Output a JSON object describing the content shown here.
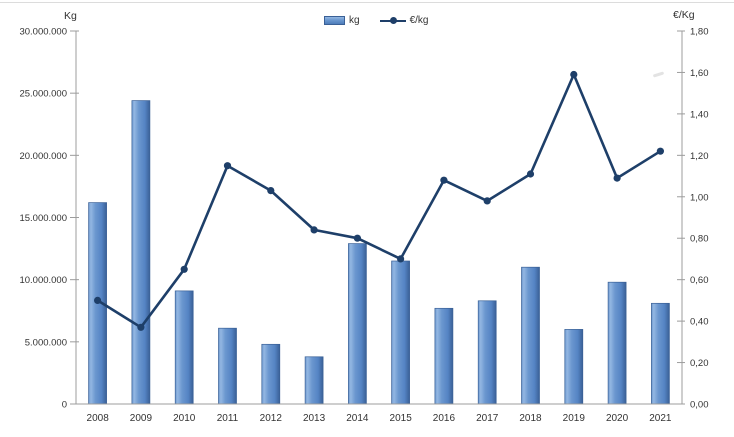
{
  "chart_data": {
    "type": "combo",
    "subtype": "bar+line dual axis",
    "title": "",
    "categories": [
      "2008",
      "2009",
      "2010",
      "2011",
      "2012",
      "2013",
      "2014",
      "2015",
      "2016",
      "2017",
      "2018",
      "2019",
      "2020",
      "2021"
    ],
    "series": [
      {
        "name": "kg",
        "type": "bar",
        "axis": "left",
        "values": [
          16200000,
          24400000,
          9100000,
          6100000,
          4800000,
          3800000,
          12900000,
          11500000,
          7700000,
          8300000,
          11000000,
          6000000,
          9800000,
          8100000
        ]
      },
      {
        "name": "€/kg",
        "type": "line",
        "axis": "right",
        "values": [
          0.5,
          0.37,
          0.65,
          1.15,
          1.03,
          0.84,
          0.8,
          0.7,
          1.08,
          0.98,
          1.11,
          1.59,
          1.09,
          1.22
        ]
      }
    ],
    "left_axis": {
      "label": "Kg",
      "min": 0,
      "max": 30000000,
      "step": 5000000,
      "tick_labels": [
        "0",
        "5.000.000",
        "10.000.000",
        "15.000.000",
        "20.000.000",
        "25.000.000",
        "30.000.000"
      ]
    },
    "right_axis": {
      "label": "€/Kg",
      "min": 0,
      "max": 1.8,
      "step": 0.2,
      "tick_labels": [
        "0,00",
        "0,20",
        "0,40",
        "0,60",
        "0,80",
        "1,00",
        "1,20",
        "1,40",
        "1,60",
        "1,80"
      ]
    },
    "x_axis": {
      "tick_labels": [
        "2008",
        "2009",
        "2010",
        "2011",
        "2012",
        "2013",
        "2014",
        "2015",
        "2016",
        "2017",
        "2018",
        "2019",
        "2020",
        "2021"
      ]
    },
    "legend": {
      "position": "top-center",
      "items": [
        {
          "label": "kg",
          "swatch": "bar"
        },
        {
          "label": "€/kg",
          "swatch": "line-marker"
        }
      ]
    },
    "grid": "off",
    "colors": {
      "bar_main": "#5b88c7",
      "bar_light": "#93b7e2",
      "bar_dark": "#3a6096",
      "line": "#1e3f69",
      "axis": "#9c9c9c",
      "text": "#333333",
      "border": "#dcdcdc"
    }
  }
}
